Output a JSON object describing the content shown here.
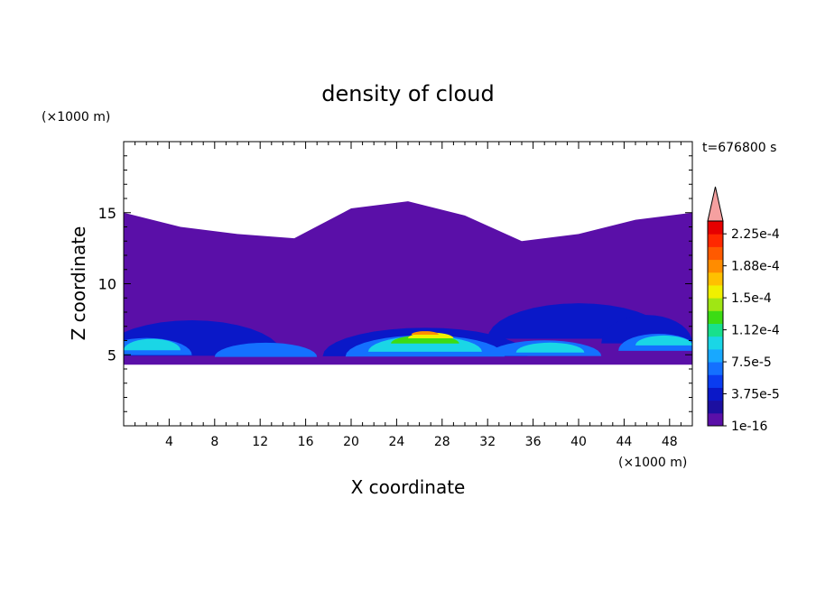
{
  "chart_data": {
    "type": "heatmap",
    "title": "density of cloud",
    "xlabel": "X coordinate",
    "ylabel": "Z coordinate",
    "x_unit": "(×1000 m)",
    "y_unit": "(×1000 m)",
    "time_label": "t=676800 s",
    "xlim": [
      0,
      50
    ],
    "ylim": [
      0,
      20
    ],
    "xticks": [
      4,
      8,
      12,
      16,
      20,
      24,
      28,
      32,
      36,
      40,
      44,
      48
    ],
    "yticks": [
      5,
      10,
      15
    ],
    "colorbar": {
      "labels": [
        "1e-16",
        "3.75e-5",
        "7.5e-5",
        "1.12e-4",
        "1.5e-4",
        "1.88e-4",
        "2.25e-4"
      ],
      "label_values": [
        0,
        3.75e-05,
        7.5e-05,
        0.000112,
        0.00015,
        0.000188,
        0.000225
      ],
      "colors": [
        "#5a0fa8",
        "#1c0fa0",
        "#0a18c8",
        "#0a3cf0",
        "#1470ff",
        "#18a8ff",
        "#1ad6e6",
        "#18e08c",
        "#3cdc14",
        "#a0e614",
        "#f0f000",
        "#ffc000",
        "#ff8c00",
        "#ff5a00",
        "#ff2800",
        "#e60000"
      ],
      "over_color": "#f5a0a0"
    },
    "regions": [
      {
        "level": 0,
        "shape": "band",
        "x": [
          0,
          50
        ],
        "z_bottom": [
          4.3,
          4.3,
          4.3,
          4.3,
          4.3,
          4.3,
          4.3,
          4.3,
          4.3,
          4.3,
          4.3
        ],
        "z_top": [
          15,
          14,
          13.5,
          13.2,
          15.3,
          15.8,
          14.8,
          13,
          13.5,
          14.5,
          15
        ]
      },
      {
        "level": 1,
        "shape": "blob",
        "cx": 26.5,
        "cz": 5.6,
        "rx": 9,
        "rz": 2.0
      },
      {
        "level": 1,
        "shape": "blob",
        "cx": 6,
        "cz": 5.8,
        "rx": 8,
        "rz": 2.5
      },
      {
        "level": 1,
        "shape": "blob",
        "cx": 40,
        "cz": 7.0,
        "rx": 8,
        "rz": 2.5
      },
      {
        "level": 1,
        "shape": "blob",
        "cx": 46,
        "cz": 6.5,
        "rx": 4,
        "rz": 2.0
      },
      {
        "level": 2,
        "shape": "blob",
        "cx": 26.5,
        "cz": 5.4,
        "rx": 7,
        "rz": 1.5
      },
      {
        "level": 2,
        "shape": "blob",
        "cx": 37,
        "cz": 5.3,
        "rx": 5,
        "rz": 1.1
      },
      {
        "level": 2,
        "shape": "blob",
        "cx": 12.5,
        "cz": 5.2,
        "rx": 4.5,
        "rz": 1.0
      },
      {
        "level": 2,
        "shape": "blob",
        "cx": 2,
        "cz": 5.4,
        "rx": 4,
        "rz": 1.2
      },
      {
        "level": 2,
        "shape": "blob",
        "cx": 47,
        "cz": 5.7,
        "rx": 3.5,
        "rz": 1.2
      },
      {
        "level": 3,
        "shape": "blob",
        "cx": 26.5,
        "cz": 5.6,
        "rx": 5,
        "rz": 1.1
      },
      {
        "level": 3,
        "shape": "blob",
        "cx": 37.5,
        "cz": 5.4,
        "rx": 3,
        "rz": 0.7
      },
      {
        "level": 3,
        "shape": "blob",
        "cx": 2.5,
        "cz": 5.6,
        "rx": 2.5,
        "rz": 0.8
      },
      {
        "level": 3,
        "shape": "blob",
        "cx": 47.5,
        "cz": 5.9,
        "rx": 2.5,
        "rz": 0.7
      },
      {
        "level": 4,
        "shape": "blob",
        "cx": 26.5,
        "cz": 6.0,
        "rx": 3,
        "rz": 0.6
      },
      {
        "level": 5,
        "shape": "blob",
        "cx": 27,
        "cz": 6.3,
        "rx": 2,
        "rz": 0.4
      },
      {
        "level": 6,
        "shape": "blob",
        "cx": 26.5,
        "cz": 6.5,
        "rx": 1.2,
        "rz": 0.25
      }
    ]
  }
}
